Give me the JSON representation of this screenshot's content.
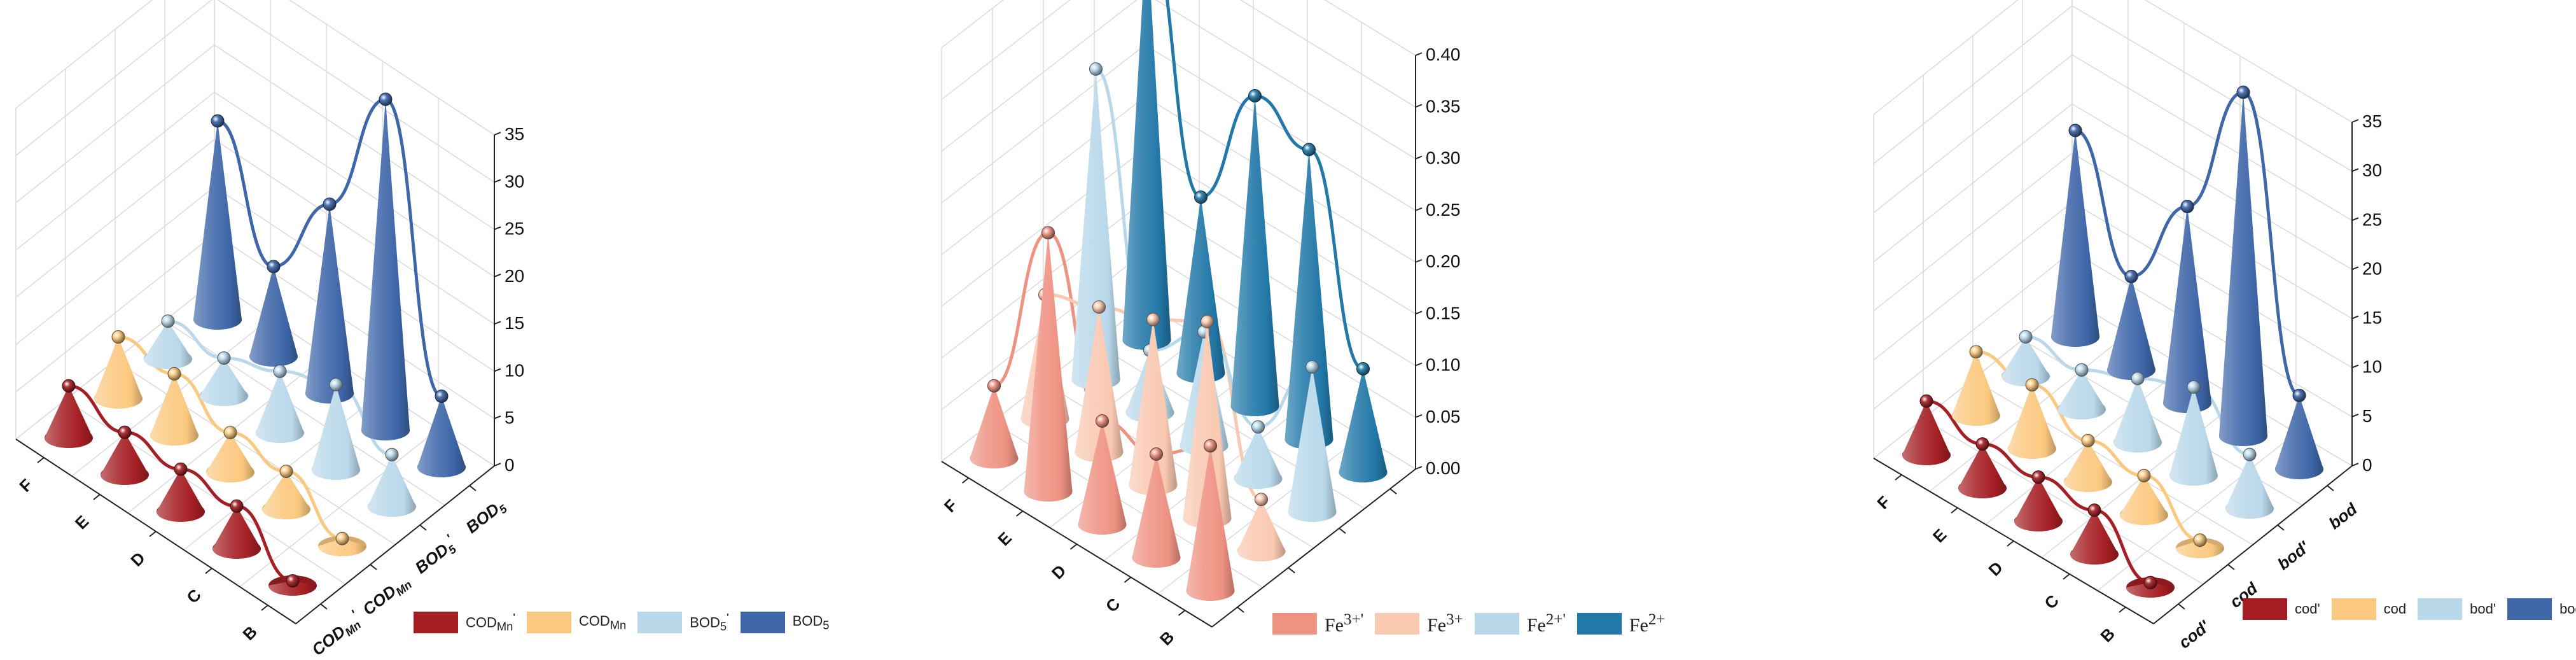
{
  "colors": {
    "dark_red": "#a41e23",
    "light_orange": "#fbc87f",
    "light_blue": "#b9d8ea",
    "dark_blue": "#3e66a8",
    "salmon": "#ee9282",
    "peach": "#f9c8b0",
    "sky": "#b8d8ea",
    "teal": "#2278a8"
  },
  "chart_data": [
    {
      "type": "3d-cone",
      "x_categories": [
        "B",
        "C",
        "D",
        "E",
        "F"
      ],
      "y_categories": [
        "COD_Mn'",
        "COD_Mn",
        "BOD_5'",
        "BOD_5"
      ],
      "z_ticks": [
        "0",
        "5",
        "10",
        "15",
        "20",
        "25",
        "30",
        "35"
      ],
      "zlim": [
        0,
        35
      ],
      "legend": [
        "COD",
        "COD",
        "BOD",
        "BOD"
      ],
      "legend_sub": [
        "Mn",
        "Mn",
        "5",
        "5"
      ],
      "legend_sup": [
        "'",
        "",
        "'",
        ""
      ],
      "y_tick_labels": [
        {
          "main": "COD",
          "sub": "Mn",
          "sup": "'"
        },
        {
          "main": "COD",
          "sub": "Mn",
          "sup": ""
        },
        {
          "main": "BOD",
          "sub": "5",
          "sup": "'"
        },
        {
          "main": "BOD",
          "sub": "5",
          "sup": ""
        }
      ],
      "series": [
        {
          "name": "COD_Mn'",
          "values": [
            0.5,
            4.5,
            4.5,
            4.5,
            5.5
          ]
        },
        {
          "name": "COD_Mn",
          "values": [
            0.8,
            4.0,
            4.2,
            6.5,
            6.5
          ]
        },
        {
          "name": "BOD_5'",
          "values": [
            5.5,
            9.0,
            6.5,
            4.0,
            4.0
          ]
        },
        {
          "name": "BOD_5",
          "values": [
            7.5,
            35.0,
            20.0,
            9.5,
            21.0
          ]
        }
      ]
    },
    {
      "type": "3d-cone",
      "x_categories": [
        "B",
        "C",
        "D",
        "E",
        "F"
      ],
      "y_categories": [
        "Fe3+'",
        "Fe3+",
        "Fe2+'",
        "Fe2+"
      ],
      "z_ticks": [
        "0.00",
        "0.05",
        "0.10",
        "0.15",
        "0.20",
        "0.25",
        "0.30",
        "0.35",
        "0.40"
      ],
      "zlim": [
        0,
        0.4
      ],
      "legend": [
        "Fe",
        "Fe",
        "Fe",
        "Fe"
      ],
      "legend_sup": [
        "3+'",
        "3+",
        "2+'",
        "2+"
      ],
      "series": [
        {
          "name": "Fe3+'",
          "values": [
            0.14,
            0.1,
            0.1,
            0.25,
            0.07
          ]
        },
        {
          "name": "Fe3+",
          "values": [
            0.05,
            0.19,
            0.16,
            0.14,
            0.12
          ]
        },
        {
          "name": "Fe2+'",
          "values": [
            0.14,
            0.05,
            0.11,
            0.06,
            0.3
          ]
        },
        {
          "name": "Fe2+",
          "values": [
            0.1,
            0.28,
            0.3,
            0.17,
            0.4
          ]
        }
      ]
    },
    {
      "type": "3d-cone",
      "x_categories": [
        "B",
        "C",
        "D",
        "E",
        "F"
      ],
      "y_categories": [
        "cod'",
        "cod",
        "bod'",
        "bod"
      ],
      "z_ticks": [
        "0",
        "5",
        "10",
        "15",
        "20",
        "25",
        "30",
        "35"
      ],
      "zlim": [
        0,
        35
      ],
      "legend": [
        "cod'",
        "cod",
        "bod'",
        "bod"
      ],
      "series": [
        {
          "name": "cod'",
          "values": [
            0.5,
            4.5,
            4.5,
            4.5,
            5.5
          ]
        },
        {
          "name": "cod",
          "values": [
            0.8,
            4.0,
            4.2,
            6.5,
            6.5
          ]
        },
        {
          "name": "bod'",
          "values": [
            5.5,
            9.0,
            6.5,
            4.0,
            4.0
          ]
        },
        {
          "name": "bod",
          "values": [
            7.5,
            35.0,
            20.0,
            9.5,
            21.0
          ]
        }
      ]
    }
  ]
}
